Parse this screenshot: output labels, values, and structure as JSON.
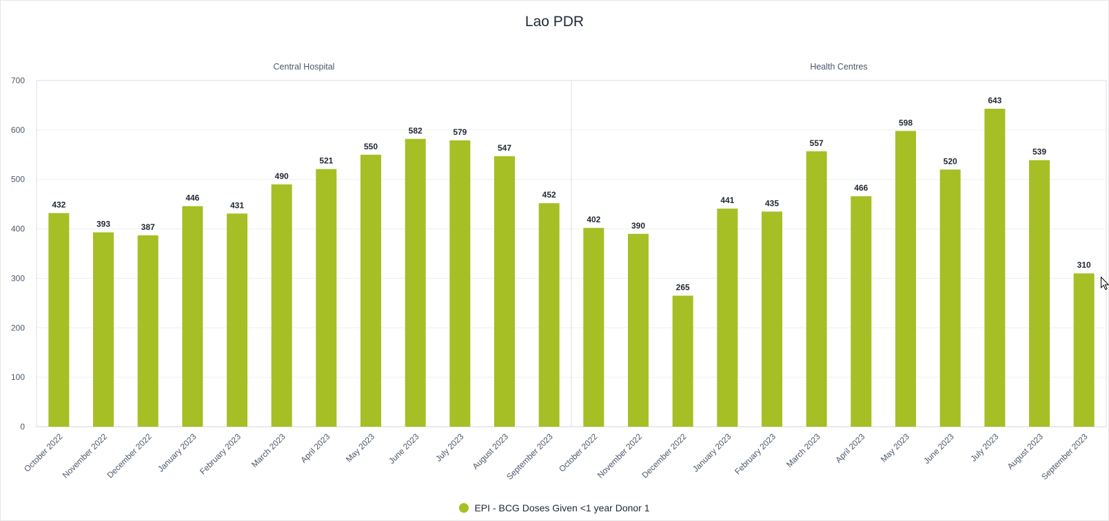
{
  "chart_data": {
    "type": "bar",
    "title": "Lao PDR",
    "ylim": [
      0,
      700
    ],
    "yticks": [
      0,
      100,
      200,
      300,
      400,
      500,
      600,
      700
    ],
    "grid": true,
    "legend_position": "bottom",
    "bar_color": "#a5bf25",
    "categories": [
      "October 2022",
      "November 2022",
      "December 2022",
      "January 2023",
      "February 2023",
      "March 2023",
      "April 2023",
      "May 2023",
      "June 2023",
      "July 2023",
      "August 2023",
      "September 2023"
    ],
    "series": [
      {
        "name": "EPI - BCG Doses Given <1 year Donor 1"
      }
    ],
    "panels": [
      {
        "title": "Central Hospital",
        "values": [
          432,
          393,
          387,
          446,
          431,
          490,
          521,
          550,
          582,
          579,
          547,
          452
        ]
      },
      {
        "title": "Health Centres",
        "values": [
          402,
          390,
          265,
          441,
          435,
          557,
          466,
          598,
          520,
          643,
          539,
          310
        ]
      }
    ]
  }
}
